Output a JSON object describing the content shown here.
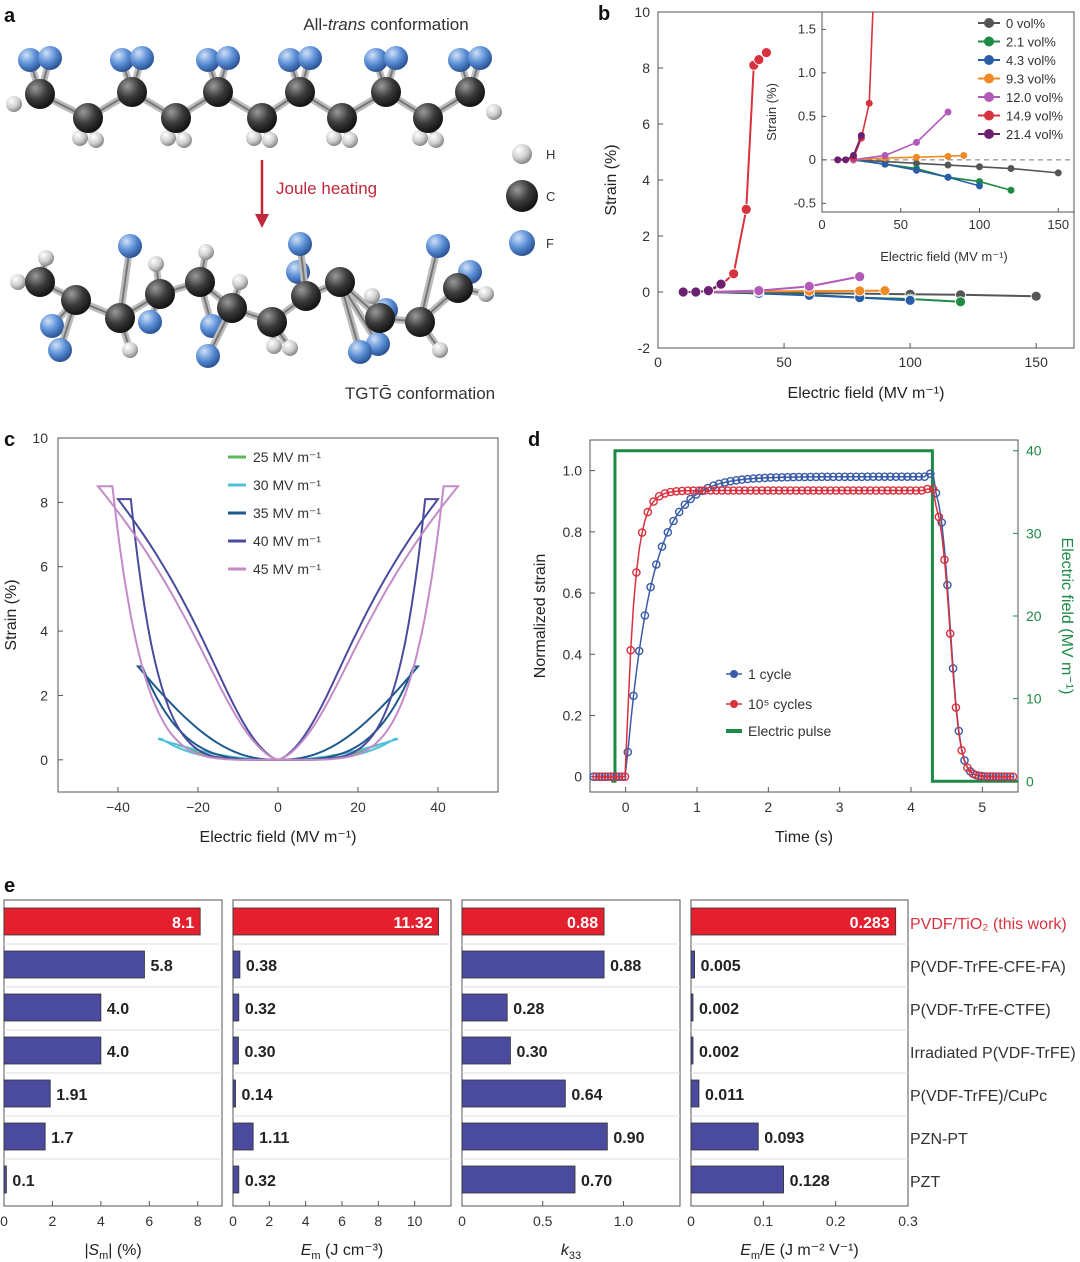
{
  "panels": {
    "a": "a",
    "b": "b",
    "c": "c",
    "d": "d",
    "e": "e"
  },
  "colors": {
    "carbon": "#3a3a3a",
    "fluorine": "#5b8fd6",
    "hydrogen": "#d8d8d8",
    "red": "#d9323f",
    "green": "#1d8a46",
    "blue": "#3a5ca8",
    "bar": "#4a4a9e",
    "arrow": "#c0283a"
  },
  "panel_a": {
    "top_caption_pre": "All-",
    "top_caption_em": "trans",
    "top_caption_post": " conformation",
    "arrow_label": "Joule heating",
    "bottom_caption": "TGTḠ conformation",
    "legend": [
      {
        "label": "H",
        "color": "#d8d8d8",
        "size": "small"
      },
      {
        "label": "C",
        "color": "#3a3a3a",
        "size": "large"
      },
      {
        "label": "F",
        "color": "#5b8fd6",
        "size": "medium"
      }
    ]
  },
  "chart_data": [
    {
      "id": "b",
      "type": "line",
      "xlabel": "Electric field (MV m⁻¹)",
      "ylabel": "Strain (%)",
      "xlim": [
        0,
        165
      ],
      "ylim": [
        -2,
        10
      ],
      "xticks": [
        0,
        50,
        100,
        150
      ],
      "yticks": [
        -2,
        0,
        2,
        4,
        6,
        8,
        10
      ],
      "series": [
        {
          "name": "0 vol%",
          "color": "#555555",
          "x": [
            20,
            40,
            60,
            80,
            100,
            120,
            150
          ],
          "y": [
            0,
            -0.02,
            -0.04,
            -0.06,
            -0.08,
            -0.1,
            -0.15
          ]
        },
        {
          "name": "2.1 vol%",
          "color": "#1d8a46",
          "x": [
            20,
            40,
            60,
            80,
            100,
            120
          ],
          "y": [
            0,
            -0.05,
            -0.1,
            -0.2,
            -0.25,
            -0.35
          ]
        },
        {
          "name": "4.3 vol%",
          "color": "#2a5da8",
          "x": [
            20,
            40,
            60,
            80,
            100
          ],
          "y": [
            0,
            -0.05,
            -0.12,
            -0.2,
            -0.3
          ]
        },
        {
          "name": "9.3 vol%",
          "color": "#f08a24",
          "x": [
            20,
            40,
            60,
            80,
            90
          ],
          "y": [
            0,
            0.02,
            0.03,
            0.04,
            0.05
          ]
        },
        {
          "name": "12.0 vol%",
          "color": "#b25ab7",
          "x": [
            20,
            40,
            60,
            80
          ],
          "y": [
            0,
            0.05,
            0.2,
            0.55
          ]
        },
        {
          "name": "14.9 vol%",
          "color": "#d9323f",
          "x": [
            10,
            20,
            25,
            30,
            35,
            38,
            40,
            43
          ],
          "y": [
            0,
            0.02,
            0.25,
            0.65,
            2.95,
            8.1,
            8.3,
            8.55
          ]
        },
        {
          "name": "21.4 vol%",
          "color": "#6a1f6f",
          "x": [
            10,
            15,
            20,
            25
          ],
          "y": [
            0,
            0,
            0.05,
            0.28
          ]
        }
      ],
      "inset": {
        "xlabel": "Electric field (MV m⁻¹)",
        "ylabel": "Strain (%)",
        "xlim": [
          0,
          160
        ],
        "ylim": [
          -0.6,
          1.7
        ],
        "xticks": [
          0,
          50,
          100,
          150
        ],
        "yticks": [
          -0.5,
          0,
          0.5,
          1.0,
          1.5
        ]
      }
    },
    {
      "id": "c",
      "type": "line",
      "xlabel": "Electric field (MV m⁻¹)",
      "ylabel": "Strain (%)",
      "xlim": [
        -55,
        55
      ],
      "ylim": [
        -1,
        10
      ],
      "xticks": [
        -40,
        -20,
        0,
        20,
        40
      ],
      "yticks": [
        0,
        2,
        4,
        6,
        8,
        10
      ],
      "series": [
        {
          "name": "25 MV m⁻¹",
          "color": "#5cb85c",
          "emax": 25,
          "smax": 0.45
        },
        {
          "name": "30 MV m⁻¹",
          "color": "#4fc1d6",
          "emax": 30,
          "smax": 0.65
        },
        {
          "name": "35 MV m⁻¹",
          "color": "#1f5a8c",
          "emax": 35,
          "smax": 2.9
        },
        {
          "name": "40 MV m⁻¹",
          "color": "#4a4a9e",
          "emax": 40,
          "smax": 8.1
        },
        {
          "name": "45 MV m⁻¹",
          "color": "#c48bc8",
          "emax": 45,
          "smax": 8.5
        }
      ]
    },
    {
      "id": "d",
      "type": "line",
      "xlabel": "Time (s)",
      "ylabel": "Normalized strain",
      "y2label": "Electric field (MV m⁻¹)",
      "xlim": [
        -0.5,
        5.5
      ],
      "ylim": [
        -0.05,
        1.1
      ],
      "y2lim": [
        -1.3,
        41.3
      ],
      "xticks": [
        0,
        1,
        2,
        3,
        4,
        5
      ],
      "yticks": [
        0,
        0.2,
        0.4,
        0.6,
        0.8,
        1.0
      ],
      "y2ticks": [
        0,
        10,
        20,
        30,
        40
      ],
      "series": [
        {
          "name": "1 cycle",
          "color": "#3a5ca8",
          "plateau": 0.98,
          "tau": 0.35
        },
        {
          "name": "10⁵ cycles",
          "color": "#d9323f",
          "plateau": 0.935,
          "tau": 0.12
        },
        {
          "name": "Electric pulse",
          "color": "#1d8a46",
          "on": -0.15,
          "off": 4.3,
          "level": 40
        }
      ]
    },
    {
      "id": "e",
      "type": "bar",
      "categories": [
        "PVDF/TiO₂ (this work)",
        "P(VDF-TrFE-CFE-FA)",
        "P(VDF-TrFE-CTFE)",
        "Irradiated P(VDF-TrFE)",
        "P(VDF-TrFE)/CuPc",
        "PZN-PT",
        "PZT"
      ],
      "series": [
        {
          "name": "|Sm| (%)",
          "xlabel_main": "|S",
          "xlabel_sub": "m",
          "xlabel_tail": "| (%)",
          "xlim": [
            0,
            9
          ],
          "xticks": [
            0,
            2,
            4,
            6,
            8
          ],
          "xtick_labels": [
            "0",
            "2",
            "4",
            "6",
            "8"
          ],
          "values": [
            8.1,
            5.8,
            4.0,
            4.0,
            1.91,
            1.7,
            0.1
          ],
          "labels": [
            "8.1",
            "5.8",
            "4.0",
            "4.0",
            "1.91",
            "1.7",
            "0.1"
          ]
        },
        {
          "name": "Em (J cm⁻³)",
          "xlabel_main": "E",
          "xlabel_sub": "m",
          "xlabel_tail": " (J cm⁻³)",
          "xlim": [
            0,
            12
          ],
          "xticks": [
            0,
            2,
            4,
            6,
            8,
            10
          ],
          "xtick_labels": [
            "0",
            "2",
            "4",
            "6",
            "8",
            "10"
          ],
          "values": [
            11.32,
            0.38,
            0.32,
            0.3,
            0.14,
            1.11,
            0.32
          ],
          "labels": [
            "11.32",
            "0.38",
            "0.32",
            "0.30",
            "0.14",
            "1.11",
            "0.32"
          ]
        },
        {
          "name": "k33",
          "xlabel_main": "k",
          "xlabel_sub": "33",
          "xlabel_tail": "",
          "xlim": [
            0,
            1.35
          ],
          "xticks": [
            0,
            0.5,
            1.0
          ],
          "xtick_labels": [
            "0",
            "0.5",
            "1.0"
          ],
          "values": [
            0.88,
            0.88,
            0.28,
            0.3,
            0.64,
            0.9,
            0.7
          ],
          "labels": [
            "0.88",
            "0.88",
            "0.28",
            "0.30",
            "0.64",
            "0.90",
            "0.70"
          ]
        },
        {
          "name": "Em/E (J m⁻² V⁻¹)",
          "xlabel_main": "E",
          "xlabel_sub": "m",
          "xlabel_tail": "/E (J m⁻² V⁻¹)",
          "xlim": [
            0,
            0.3
          ],
          "xticks": [
            0,
            0.1,
            0.2,
            0.3
          ],
          "xtick_labels": [
            "0",
            "0.1",
            "0.2",
            "0.3"
          ],
          "values": [
            0.283,
            0.005,
            0.002,
            0.002,
            0.011,
            0.093,
            0.128
          ],
          "labels": [
            "0.283",
            "0.005",
            "0.002",
            "0.002",
            "0.011",
            "0.093",
            "0.128"
          ]
        }
      ]
    }
  ]
}
